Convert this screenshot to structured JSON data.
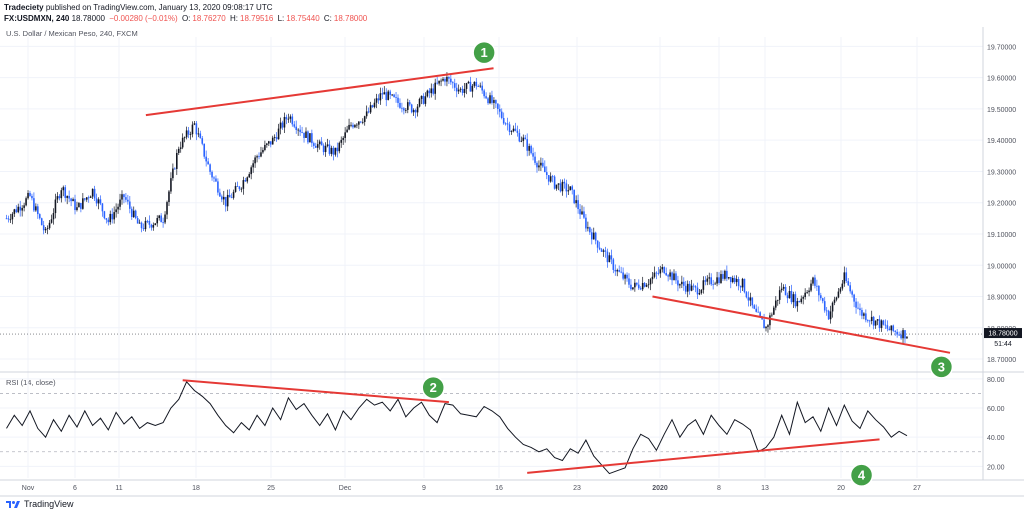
{
  "header": {
    "publisher": "Tradeciety",
    "published_text": "published on TradingView.com, January 13, 2020 09:08:17 UTC",
    "symbol": "FX:USDMXN, 240",
    "last": "18.78000",
    "change": "−0.00280 (−0.01%)",
    "o_label": "O:",
    "o_value": "18.76270",
    "h_label": "H:",
    "h_value": "18.79516",
    "l_label": "L:",
    "l_value": "18.75440",
    "c_label": "C:",
    "c_value": "18.78000"
  },
  "main_title": "U.S. Dollar / Mexican Peso, 240, FXCM",
  "rsi_title": "RSI (14, close)",
  "price_badge": "18.78000",
  "timer_badge": "51:44",
  "footer_brand": "TradingView",
  "colors": {
    "up_candle": "#131722",
    "down_candle": "#2962ff",
    "trendline": "#e53935",
    "marker": "#43a047",
    "rsi_line": "#131722"
  },
  "chart_data": [
    {
      "type": "candlestick",
      "title": "U.S. Dollar / Mexican Peso, 240, FXCM",
      "y_ticks": [
        "19.70000",
        "19.60000",
        "19.50000",
        "19.40000",
        "19.30000",
        "19.20000",
        "19.10000",
        "19.00000",
        "18.90000",
        "18.80000",
        "18.70000"
      ],
      "ylim": [
        18.665,
        19.73
      ],
      "x_ticks": [
        "Nov",
        "6",
        "11",
        "18",
        "25",
        "Dec",
        "9",
        "16",
        "23",
        "2020",
        "8",
        "13",
        "20",
        "27"
      ],
      "close_path": [
        [
          0,
          19.15
        ],
        [
          3,
          19.22
        ],
        [
          5,
          19.1
        ],
        [
          7,
          19.25
        ],
        [
          9,
          19.18
        ],
        [
          11,
          19.24
        ],
        [
          13,
          19.14
        ],
        [
          15,
          19.22
        ],
        [
          17,
          19.12
        ],
        [
          20,
          19.15
        ],
        [
          22,
          19.38
        ],
        [
          24,
          19.45
        ],
        [
          26,
          19.3
        ],
        [
          28,
          19.2
        ],
        [
          30,
          19.26
        ],
        [
          32,
          19.35
        ],
        [
          34,
          19.4
        ],
        [
          36,
          19.48
        ],
        [
          38,
          19.42
        ],
        [
          40,
          19.38
        ],
        [
          42,
          19.36
        ],
        [
          44,
          19.45
        ],
        [
          46,
          19.48
        ],
        [
          48,
          19.55
        ],
        [
          50,
          19.52
        ],
        [
          52,
          19.5
        ],
        [
          54,
          19.55
        ],
        [
          56,
          19.6
        ],
        [
          58,
          19.56
        ],
        [
          60,
          19.58
        ],
        [
          62,
          19.52
        ],
        [
          64,
          19.45
        ],
        [
          66,
          19.4
        ],
        [
          68,
          19.32
        ],
        [
          70,
          19.26
        ],
        [
          72,
          19.24
        ],
        [
          74,
          19.13
        ],
        [
          76,
          19.05
        ],
        [
          78,
          18.98
        ],
        [
          80,
          18.93
        ],
        [
          82,
          18.95
        ],
        [
          84,
          18.99
        ],
        [
          86,
          18.94
        ],
        [
          88,
          18.92
        ],
        [
          90,
          18.95
        ],
        [
          92,
          18.97
        ],
        [
          94,
          18.94
        ],
        [
          95.5,
          18.85
        ],
        [
          97,
          18.8
        ],
        [
          99,
          18.93
        ],
        [
          101,
          18.88
        ],
        [
          103,
          18.95
        ],
        [
          105,
          18.84
        ],
        [
          107,
          18.96
        ],
        [
          109,
          18.85
        ],
        [
          111,
          18.82
        ],
        [
          113,
          18.79
        ],
        [
          115,
          18.78
        ]
      ],
      "trendlines": [
        {
          "from": [
            17.8,
            19.48
          ],
          "to": [
            62.2,
            19.63
          ]
        },
        {
          "from": [
            82.5,
            18.9
          ],
          "to": [
            120.5,
            18.72
          ]
        }
      ],
      "markers": [
        {
          "label": "1",
          "at": [
            61,
            19.68
          ]
        },
        {
          "label": "3",
          "at": [
            119.4,
            18.675
          ]
        }
      ]
    },
    {
      "type": "line",
      "title": "RSI (14, close)",
      "y_ticks": [
        "80.00",
        "60.00",
        "40.00",
        "20.00"
      ],
      "ylim": [
        12,
        84
      ],
      "dashed_levels": [
        70,
        30
      ],
      "series": [
        {
          "values_path": [
            [
              0,
              46
            ],
            [
              1,
              55
            ],
            [
              2,
              48
            ],
            [
              3,
              58
            ],
            [
              4,
              46
            ],
            [
              5,
              40
            ],
            [
              6,
              52
            ],
            [
              7,
              44
            ],
            [
              8,
              55
            ],
            [
              9,
              47
            ],
            [
              10,
              58
            ],
            [
              11,
              48
            ],
            [
              12,
              53
            ],
            [
              13,
              45
            ],
            [
              14,
              57
            ],
            [
              15,
              49
            ],
            [
              16,
              54
            ],
            [
              17,
              46
            ],
            [
              18,
              50
            ],
            [
              19,
              48
            ],
            [
              20,
              50
            ],
            [
              21,
              60
            ],
            [
              22,
              66
            ],
            [
              23,
              78
            ],
            [
              24,
              72
            ],
            [
              25,
              68
            ],
            [
              26,
              63
            ],
            [
              27,
              55
            ],
            [
              28,
              48
            ],
            [
              29,
              43
            ],
            [
              30,
              50
            ],
            [
              31,
              45
            ],
            [
              32,
              55
            ],
            [
              33,
              48
            ],
            [
              34,
              60
            ],
            [
              35,
              52
            ],
            [
              36,
              67
            ],
            [
              37,
              59
            ],
            [
              38,
              63
            ],
            [
              39,
              55
            ],
            [
              40,
              48
            ],
            [
              41,
              56
            ],
            [
              42,
              45
            ],
            [
              43,
              58
            ],
            [
              44,
              52
            ],
            [
              45,
              60
            ],
            [
              46,
              66
            ],
            [
              47,
              62
            ],
            [
              48,
              64
            ],
            [
              49,
              58
            ],
            [
              50,
              66
            ],
            [
              51,
              54
            ],
            [
              52,
              60
            ],
            [
              53,
              64
            ],
            [
              54,
              55
            ],
            [
              55,
              50
            ],
            [
              56,
              63
            ],
            [
              57,
              62
            ],
            [
              58,
              56
            ],
            [
              59,
              55
            ],
            [
              60,
              54
            ],
            [
              61,
              61
            ],
            [
              62,
              58
            ],
            [
              63,
              54
            ],
            [
              64,
              46
            ],
            [
              65,
              40
            ],
            [
              66,
              35
            ],
            [
              67,
              33
            ],
            [
              68,
              30
            ],
            [
              69,
              32
            ],
            [
              70,
              26
            ],
            [
              71,
              24
            ],
            [
              72,
              32
            ],
            [
              73,
              29
            ],
            [
              74,
              38
            ],
            [
              75,
              27
            ],
            [
              76,
              21
            ],
            [
              77,
              15
            ],
            [
              78,
              17
            ],
            [
              79,
              19
            ],
            [
              80,
              32
            ],
            [
              81,
              42
            ],
            [
              82,
              39
            ],
            [
              83,
              31
            ],
            [
              84,
              42
            ],
            [
              85,
              52
            ],
            [
              86,
              40
            ],
            [
              87,
              48
            ],
            [
              88,
              52
            ],
            [
              89,
              42
            ],
            [
              90,
              55
            ],
            [
              91,
              48
            ],
            [
              92,
              42
            ],
            [
              93,
              52
            ],
            [
              94,
              49
            ],
            [
              95,
              45
            ],
            [
              96,
              30
            ],
            [
              97,
              33
            ],
            [
              98,
              40
            ],
            [
              99,
              55
            ],
            [
              100,
              42
            ],
            [
              101,
              64
            ],
            [
              102,
              50
            ],
            [
              103,
              54
            ],
            [
              104,
              44
            ],
            [
              105,
              60
            ],
            [
              106,
              48
            ],
            [
              107,
              62
            ],
            [
              108,
              51
            ],
            [
              109,
              46
            ],
            [
              110,
              58
            ],
            [
              111,
              52
            ],
            [
              112,
              47
            ],
            [
              113,
              40
            ],
            [
              114,
              44
            ],
            [
              115,
              41
            ]
          ]
        }
      ],
      "trendlines": [
        {
          "from": [
            22.5,
            79
          ],
          "to": [
            56.5,
            64
          ]
        },
        {
          "from": [
            66.5,
            15.5
          ],
          "to": [
            111.5,
            38.5
          ]
        }
      ],
      "markers": [
        {
          "label": "2",
          "at": [
            54.5,
            74
          ]
        },
        {
          "label": "4",
          "at": [
            109.2,
            14
          ]
        }
      ]
    }
  ]
}
